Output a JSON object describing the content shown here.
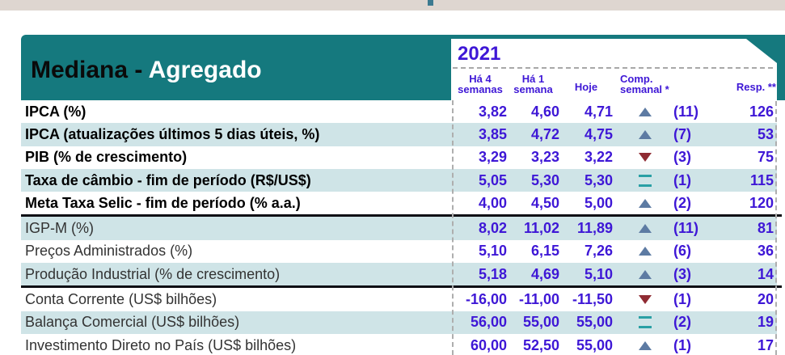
{
  "header": {
    "title_prefix": "Mediana - ",
    "title_suffix": "Agregado",
    "year": "2021",
    "columns": [
      "Há 4 semanas",
      "Há 1 semana",
      "Hoje",
      "Comp. semanal *",
      "Resp. **"
    ]
  },
  "colors": {
    "teal_band": "#15797e",
    "row_stripe": "#cfe4e7",
    "top_strip": "#ded6d0",
    "value_text": "#3e17d6",
    "trend_up": "#5d7ba3",
    "trend_down": "#8f2b33",
    "trend_equal": "#2aa0a5"
  },
  "rows": [
    {
      "label": "IPCA (%)",
      "bold": true,
      "ha4": "3,82",
      "ha1": "4,60",
      "hoje": "4,71",
      "trend": "up",
      "comp": "(11)",
      "resp": "126",
      "sep_after": false
    },
    {
      "label": "IPCA (atualizações últimos 5 dias úteis, %)",
      "bold": true,
      "ha4": "3,85",
      "ha1": "4,72",
      "hoje": "4,75",
      "trend": "up",
      "comp": "(7)",
      "resp": "53",
      "sep_after": false
    },
    {
      "label": "PIB (% de crescimento)",
      "bold": true,
      "ha4": "3,29",
      "ha1": "3,23",
      "hoje": "3,22",
      "trend": "down",
      "comp": "(3)",
      "resp": "75",
      "sep_after": false
    },
    {
      "label": "Taxa de câmbio - fim de período (R$/US$)",
      "bold": true,
      "ha4": "5,05",
      "ha1": "5,30",
      "hoje": "5,30",
      "trend": "equal",
      "comp": "(1)",
      "resp": "115",
      "sep_after": false
    },
    {
      "label": "Meta Taxa Selic - fim de período (% a.a.)",
      "bold": true,
      "ha4": "4,00",
      "ha1": "4,50",
      "hoje": "5,00",
      "trend": "up",
      "comp": "(2)",
      "resp": "120",
      "sep_after": true
    },
    {
      "label": "IGP-M (%)",
      "bold": false,
      "ha4": "8,02",
      "ha1": "11,02",
      "hoje": "11,89",
      "trend": "up",
      "comp": "(11)",
      "resp": "81",
      "sep_after": false
    },
    {
      "label": "Preços Administrados (%)",
      "bold": false,
      "ha4": "5,10",
      "ha1": "6,15",
      "hoje": "7,26",
      "trend": "up",
      "comp": "(6)",
      "resp": "36",
      "sep_after": false
    },
    {
      "label": "Produção Industrial (% de crescimento)",
      "bold": false,
      "ha4": "5,18",
      "ha1": "4,69",
      "hoje": "5,10",
      "trend": "up",
      "comp": "(3)",
      "resp": "14",
      "sep_after": true
    },
    {
      "label": "Conta Corrente (US$ bilhões)",
      "bold": false,
      "ha4": "-16,00",
      "ha1": "-11,00",
      "hoje": "-11,50",
      "trend": "down",
      "comp": "(1)",
      "resp": "20",
      "sep_after": false
    },
    {
      "label": "Balança Comercial (US$ bilhões)",
      "bold": false,
      "ha4": "56,00",
      "ha1": "55,00",
      "hoje": "55,00",
      "trend": "equal",
      "comp": "(2)",
      "resp": "19",
      "sep_after": false
    },
    {
      "label": "Investimento Direto no País (US$ bilhões)",
      "bold": false,
      "ha4": "60,00",
      "ha1": "52,50",
      "hoje": "55,00",
      "trend": "up",
      "comp": "(1)",
      "resp": "17",
      "sep_after": false
    }
  ]
}
